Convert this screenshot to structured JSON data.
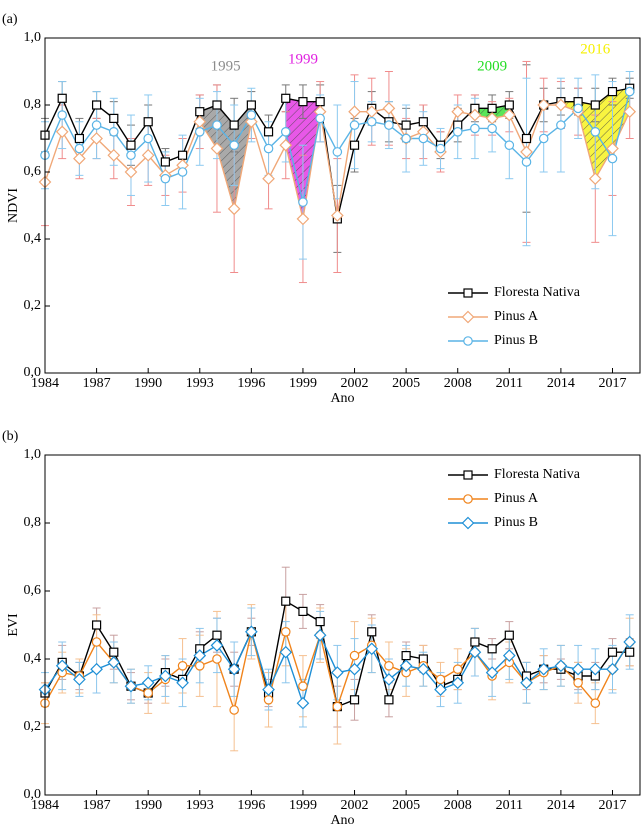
{
  "chart_data": [
    {
      "type": "line",
      "panel": "(a)",
      "xlabel": "Ano",
      "ylabel": "NDVI",
      "x": [
        1984,
        1985,
        1986,
        1987,
        1988,
        1989,
        1990,
        1991,
        1992,
        1993,
        1994,
        1995,
        1996,
        1997,
        1998,
        1999,
        2000,
        2001,
        2002,
        2003,
        2004,
        2005,
        2006,
        2007,
        2008,
        2009,
        2010,
        2011,
        2012,
        2013,
        2014,
        2015,
        2016,
        2017,
        2018
      ],
      "xlim": [
        1984,
        2018.6
      ],
      "xticks": [
        1984,
        1987,
        1990,
        1993,
        1996,
        1999,
        2002,
        2005,
        2008,
        2011,
        2014,
        2017
      ],
      "ylim": [
        0,
        1
      ],
      "yticks": [
        {
          "value": 0,
          "label": "0,0"
        },
        {
          "value": 0.2,
          "label": "0,2"
        },
        {
          "value": 0.4,
          "label": "0,4"
        },
        {
          "value": 0.6,
          "label": "0,6"
        },
        {
          "value": 0.8,
          "label": "0,8"
        },
        {
          "value": 1,
          "label": "1,0"
        }
      ],
      "legend": "lower right",
      "series": [
        {
          "name": "Floresta Nativa",
          "color": "#000000",
          "error_color": "#777777",
          "marker": "square",
          "values": [
            0.71,
            0.82,
            0.7,
            0.8,
            0.76,
            0.68,
            0.75,
            0.63,
            0.65,
            0.78,
            0.8,
            0.74,
            0.8,
            0.72,
            0.82,
            0.81,
            0.81,
            0.46,
            0.68,
            0.79,
            0.75,
            0.74,
            0.75,
            0.68,
            0.74,
            0.79,
            0.79,
            0.8,
            0.7,
            0.8,
            0.81,
            0.81,
            0.8,
            0.84,
            0.85
          ],
          "errors": [
            0.05,
            0.05,
            0.06,
            0.04,
            0.05,
            0.06,
            0.05,
            0.04,
            0.05,
            0.05,
            0.06,
            0.08,
            0.04,
            0.05,
            0.04,
            0.05,
            0.05,
            0.1,
            0.08,
            0.05,
            0.06,
            0.05,
            0.05,
            0.04,
            0.05,
            0.04,
            0.04,
            0.04,
            0.22,
            0.05,
            0.04,
            0.04,
            0.05,
            0.04,
            0.03
          ]
        },
        {
          "name": "Pinus A",
          "color": "#f0a878",
          "error_color": "#f08c8c",
          "marker": "diamond",
          "values": [
            0.57,
            0.72,
            0.64,
            0.7,
            0.65,
            0.6,
            0.65,
            0.59,
            0.62,
            0.75,
            0.67,
            0.49,
            0.75,
            0.58,
            0.68,
            0.46,
            0.78,
            0.47,
            0.78,
            0.78,
            0.79,
            0.7,
            0.72,
            0.66,
            0.78,
            0.77,
            0.76,
            0.77,
            0.66,
            0.8,
            0.8,
            0.78,
            0.58,
            0.67,
            0.78
          ],
          "errors": [
            0.13,
            0.08,
            0.06,
            0.06,
            0.07,
            0.1,
            0.09,
            0.06,
            0.08,
            0.08,
            0.19,
            0.19,
            0.05,
            0.09,
            0.1,
            0.19,
            0.09,
            0.17,
            0.11,
            0.1,
            0.11,
            0.06,
            0.08,
            0.06,
            0.05,
            0.06,
            0.05,
            0.05,
            0.27,
            0.08,
            0.07,
            0.07,
            0.19,
            0.14,
            0.08
          ]
        },
        {
          "name": "Pinus B",
          "color": "#5ab4e6",
          "error_color": "#8ccaf0",
          "marker": "circle",
          "values": [
            0.65,
            0.77,
            0.67,
            0.74,
            0.72,
            0.65,
            0.7,
            0.58,
            0.6,
            0.72,
            0.74,
            0.68,
            0.77,
            0.67,
            0.72,
            0.51,
            0.76,
            0.66,
            0.74,
            0.75,
            0.74,
            0.7,
            0.7,
            0.67,
            0.72,
            0.73,
            0.73,
            0.68,
            0.63,
            0.7,
            0.74,
            0.79,
            0.72,
            0.64,
            0.84
          ],
          "errors": [
            0.1,
            0.1,
            0.08,
            0.1,
            0.1,
            0.12,
            0.13,
            0.08,
            0.11,
            0.1,
            0.1,
            0.12,
            0.08,
            0.08,
            0.09,
            0.17,
            0.07,
            0.14,
            0.13,
            0.06,
            0.07,
            0.1,
            0.08,
            0.06,
            0.08,
            0.09,
            0.07,
            0.1,
            0.25,
            0.1,
            0.14,
            0.09,
            0.17,
            0.23,
            0.06
          ]
        }
      ],
      "annotations": [
        {
          "text": "1995",
          "color": "#8c8c8c",
          "from": 1993,
          "to": 1996
        },
        {
          "text": "1999",
          "color": "#e020e0",
          "from": 1998,
          "to": 2000
        },
        {
          "text": "2009",
          "color": "#22dd22",
          "from": 2009,
          "to": 2011
        },
        {
          "text": "2016",
          "color": "#f5f000",
          "from": 2014,
          "to": 2018
        }
      ]
    },
    {
      "type": "line",
      "panel": "(b)",
      "xlabel": "Ano",
      "ylabel": "EVI",
      "x": [
        1984,
        1985,
        1986,
        1987,
        1988,
        1989,
        1990,
        1991,
        1992,
        1993,
        1994,
        1995,
        1996,
        1997,
        1998,
        1999,
        2000,
        2001,
        2002,
        2003,
        2004,
        2005,
        2006,
        2007,
        2008,
        2009,
        2010,
        2011,
        2012,
        2013,
        2014,
        2015,
        2016,
        2017,
        2018
      ],
      "xlim": [
        1984,
        2018.6
      ],
      "xticks": [
        1984,
        1987,
        1990,
        1993,
        1996,
        1999,
        2002,
        2005,
        2008,
        2011,
        2014,
        2017
      ],
      "ylim": [
        0,
        1
      ],
      "yticks": [
        {
          "value": 0,
          "label": "0,0"
        },
        {
          "value": 0.2,
          "label": "0,2"
        },
        {
          "value": 0.4,
          "label": "0,4"
        },
        {
          "value": 0.6,
          "label": "0,6"
        },
        {
          "value": 0.8,
          "label": "0,8"
        },
        {
          "value": 1,
          "label": "1,0"
        }
      ],
      "legend": "upper right",
      "series": [
        {
          "name": "Floresta Nativa",
          "color": "#000000",
          "error_color": "#c8a0a0",
          "marker": "square",
          "values": [
            0.3,
            0.39,
            0.35,
            0.5,
            0.42,
            0.32,
            0.3,
            0.36,
            0.34,
            0.43,
            0.47,
            0.37,
            0.48,
            0.3,
            0.57,
            0.54,
            0.51,
            0.26,
            0.28,
            0.48,
            0.28,
            0.41,
            0.4,
            0.32,
            0.34,
            0.45,
            0.43,
            0.47,
            0.35,
            0.37,
            0.37,
            0.35,
            0.35,
            0.42,
            0.42
          ],
          "errors": [
            0.03,
            0.05,
            0.04,
            0.05,
            0.05,
            0.04,
            0.03,
            0.04,
            0.04,
            0.05,
            0.05,
            0.05,
            0.04,
            0.04,
            0.1,
            0.05,
            0.05,
            0.06,
            0.06,
            0.05,
            0.05,
            0.04,
            0.04,
            0.03,
            0.03,
            0.04,
            0.03,
            0.04,
            0.04,
            0.04,
            0.03,
            0.04,
            0.04,
            0.04,
            0.04
          ]
        },
        {
          "name": "Pinus A",
          "color": "#f0841c",
          "error_color": "#f5c090",
          "marker": "circle",
          "values": [
            0.27,
            0.36,
            0.35,
            0.45,
            0.39,
            0.32,
            0.3,
            0.34,
            0.38,
            0.38,
            0.4,
            0.25,
            0.48,
            0.28,
            0.48,
            0.32,
            0.47,
            0.26,
            0.41,
            0.44,
            0.38,
            0.36,
            0.38,
            0.34,
            0.37,
            0.42,
            0.35,
            0.39,
            0.33,
            0.36,
            0.38,
            0.33,
            0.27,
            0.37,
            0.45
          ],
          "errors": [
            0.06,
            0.06,
            0.05,
            0.08,
            0.06,
            0.05,
            0.06,
            0.07,
            0.08,
            0.09,
            0.14,
            0.12,
            0.08,
            0.08,
            0.1,
            0.09,
            0.08,
            0.11,
            0.1,
            0.08,
            0.07,
            0.07,
            0.06,
            0.05,
            0.06,
            0.07,
            0.07,
            0.06,
            0.06,
            0.05,
            0.06,
            0.06,
            0.06,
            0.06,
            0.07
          ]
        },
        {
          "name": "Pinus B",
          "color": "#1e8fd6",
          "error_color": "#8cc6ec",
          "marker": "diamond",
          "values": [
            0.31,
            0.38,
            0.34,
            0.37,
            0.39,
            0.32,
            0.33,
            0.35,
            0.33,
            0.41,
            0.44,
            0.37,
            0.48,
            0.31,
            0.42,
            0.27,
            0.47,
            0.36,
            0.37,
            0.43,
            0.34,
            0.38,
            0.37,
            0.31,
            0.33,
            0.42,
            0.36,
            0.41,
            0.33,
            0.37,
            0.38,
            0.37,
            0.37,
            0.37,
            0.45
          ],
          "errors": [
            0.05,
            0.07,
            0.05,
            0.07,
            0.06,
            0.05,
            0.05,
            0.06,
            0.07,
            0.08,
            0.08,
            0.08,
            0.07,
            0.06,
            0.09,
            0.07,
            0.07,
            0.08,
            0.09,
            0.07,
            0.06,
            0.06,
            0.05,
            0.05,
            0.06,
            0.07,
            0.07,
            0.07,
            0.06,
            0.06,
            0.06,
            0.07,
            0.06,
            0.07,
            0.08
          ]
        }
      ]
    }
  ]
}
